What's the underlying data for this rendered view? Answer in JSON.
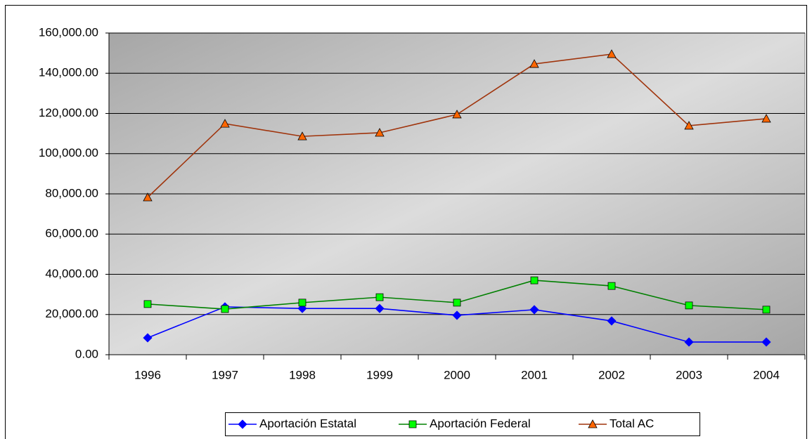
{
  "chart_data": {
    "type": "line",
    "categories": [
      "1996",
      "1997",
      "1998",
      "1999",
      "2000",
      "2001",
      "2002",
      "2003",
      "2004"
    ],
    "series": [
      {
        "name": "Aportación Estatal",
        "color": "#0000ff",
        "marker": "diamond",
        "values": [
          8400,
          23800,
          23000,
          23000,
          19600,
          22400,
          16800,
          6300,
          6300
        ]
      },
      {
        "name": "Aportación Federal",
        "color": "#008000",
        "marker_fill": "#00ff00",
        "marker": "square",
        "values": [
          25200,
          22700,
          25900,
          28600,
          25900,
          37000,
          34200,
          24500,
          22400
        ]
      },
      {
        "name": "Total AC",
        "color": "#a0340c",
        "marker_fill": "#ff6600",
        "marker": "triangle",
        "values": [
          78250,
          114900,
          108600,
          110400,
          119500,
          144600,
          149500,
          113900,
          117400
        ]
      }
    ],
    "ylim": [
      0,
      160000
    ],
    "yticks": [
      {
        "value": 0,
        "label": "0.00"
      },
      {
        "value": 20000,
        "label": "20,000.00"
      },
      {
        "value": 40000,
        "label": "40,000.00"
      },
      {
        "value": 60000,
        "label": "60,000.00"
      },
      {
        "value": 80000,
        "label": "80,000.00"
      },
      {
        "value": 100000,
        "label": "100,000.00"
      },
      {
        "value": 120000,
        "label": "120,000.00"
      },
      {
        "value": 140000,
        "label": "140,000.00"
      },
      {
        "value": 160000,
        "label": "160,000.00"
      }
    ],
    "grid": true,
    "legend": "bottom"
  }
}
